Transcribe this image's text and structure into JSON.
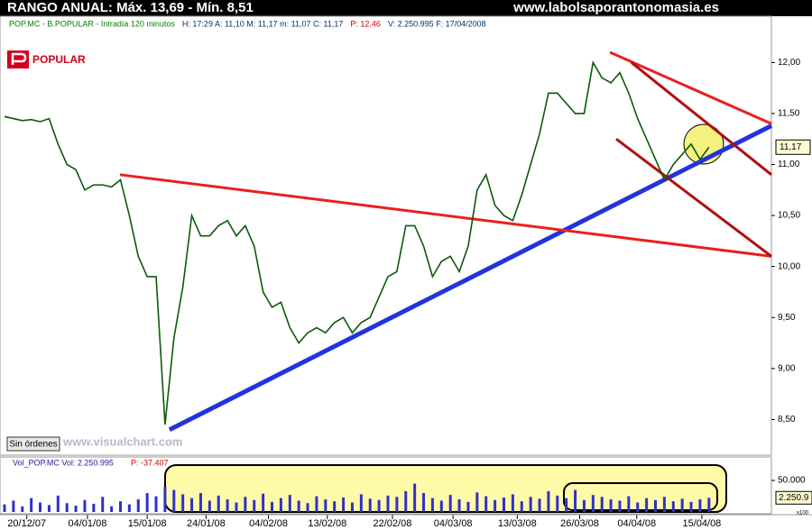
{
  "header": {
    "title": "RANGO ANUAL: Máx. 13,69 - Mín. 8,51",
    "site": "www.labolsaporantonomasia.es"
  },
  "info": [
    {
      "text": "POP.MC - B.POPULAR - Intradía 120 minutos",
      "color": "#008000"
    },
    {
      "text": "H: 17:29  A: 11,10  M: 11,17  m: 11,07  C: 11,17",
      "color": "#003366"
    },
    {
      "text": "P: 12,46",
      "color": "#d00000"
    },
    {
      "text": "V: 2.250.995  F: 17/04/2008",
      "color": "#003366"
    }
  ],
  "logo": "POPULAR",
  "button": "Sin órdenes",
  "watermark": "www.visualchart.com",
  "chart_data": [
    {
      "type": "line",
      "color": "#0b5a0b",
      "xlim": [
        0,
        86
      ],
      "ylim": [
        8.15,
        12.33
      ],
      "values": [
        11.47,
        11.45,
        11.43,
        11.44,
        11.42,
        11.45,
        11.2,
        11.0,
        10.95,
        10.75,
        10.8,
        10.8,
        10.78,
        10.85,
        10.5,
        10.1,
        9.9,
        9.9,
        8.45,
        9.3,
        9.8,
        10.5,
        10.3,
        10.3,
        10.4,
        10.45,
        10.3,
        10.4,
        10.2,
        9.75,
        9.6,
        9.65,
        9.4,
        9.25,
        9.35,
        9.4,
        9.35,
        9.45,
        9.5,
        9.35,
        9.45,
        9.5,
        9.7,
        9.9,
        9.95,
        10.4,
        10.4,
        10.2,
        9.9,
        10.05,
        10.1,
        9.95,
        10.2,
        10.75,
        10.9,
        10.6,
        10.5,
        10.45,
        10.7,
        11.0,
        11.3,
        11.7,
        11.7,
        11.6,
        11.5,
        11.5,
        12.0,
        11.85,
        11.8,
        11.9,
        11.7,
        11.45,
        11.25,
        11.05,
        10.85,
        11.0,
        11.1,
        11.2,
        11.05,
        11.17
      ],
      "yticks": [
        {
          "value": 12,
          "label": "12,00"
        },
        {
          "value": 11.5,
          "label": "11,50"
        },
        {
          "value": 11,
          "label": "11,00"
        },
        {
          "value": 10.5,
          "label": "10,50"
        },
        {
          "value": 10,
          "label": "10,00"
        },
        {
          "value": 9.5,
          "label": "9,50"
        },
        {
          "value": 9,
          "label": "9,00"
        },
        {
          "value": 8.5,
          "label": "8,50"
        }
      ],
      "last": {
        "value": 11.17,
        "label": "11,17"
      },
      "trendlines": [
        {
          "color": "#2233dd",
          "x": [
            18.5,
            86
          ],
          "y": [
            8.4,
            11.38
          ]
        },
        {
          "color": "#e82020",
          "x": [
            12.95,
            86
          ],
          "y": [
            10.9,
            10.1
          ]
        },
        {
          "color": "#e82020",
          "x": [
            67.9,
            86
          ],
          "y": [
            12.1,
            11.4
          ]
        },
        {
          "color": "#b01010",
          "x": [
            70.3,
            86
          ],
          "y": [
            12.0,
            10.9
          ]
        },
        {
          "color": "#b01010",
          "x": [
            68.6,
            86
          ],
          "y": [
            11.25,
            10.1
          ]
        }
      ]
    },
    {
      "type": "bar",
      "color": "#3030c8",
      "title": "Vol_POP.MC  Vol: 2.250.995",
      "subtitle": "P: -37.407",
      "xlim": [
        0,
        86
      ],
      "ylim": [
        0,
        83000
      ],
      "values": [
        12000,
        18000,
        9000,
        22000,
        15000,
        11000,
        26000,
        14000,
        10000,
        19000,
        13000,
        24000,
        9000,
        17000,
        12000,
        20000,
        30000,
        25000,
        40000,
        35000,
        28000,
        22000,
        30000,
        18000,
        26000,
        20000,
        15000,
        24000,
        19000,
        29000,
        16000,
        22000,
        27000,
        18000,
        14000,
        25000,
        20000,
        17000,
        23000,
        15000,
        28000,
        21000,
        19000,
        26000,
        24000,
        33000,
        45000,
        30000,
        22000,
        18000,
        27000,
        20000,
        16000,
        31000,
        25000,
        19000,
        23000,
        28000,
        17000,
        24000,
        21000,
        33000,
        26000,
        22000,
        35000,
        19000,
        27000,
        24000,
        20000,
        18000,
        25000,
        15000,
        22000,
        19000,
        24000,
        17000,
        21000,
        16000,
        20000,
        22510
      ],
      "yticks": [
        {
          "value": 50000,
          "label": "50.000"
        }
      ],
      "last": {
        "value": 22510,
        "label": "2.250.9"
      },
      "unit": "x100",
      "xticks": [
        {
          "value": 2.5,
          "label": "20/12/07"
        },
        {
          "value": 9.3,
          "label": "04/01/08"
        },
        {
          "value": 16,
          "label": "15/01/08"
        },
        {
          "value": 22.6,
          "label": "24/01/08"
        },
        {
          "value": 29.6,
          "label": "04/02/08"
        },
        {
          "value": 36.2,
          "label": "13/02/08"
        },
        {
          "value": 43.5,
          "label": "22/02/08"
        },
        {
          "value": 50.3,
          "label": "04/03/08"
        },
        {
          "value": 57.5,
          "label": "13/03/08"
        },
        {
          "value": 64.5,
          "label": "26/03/08"
        },
        {
          "value": 70.9,
          "label": "04/04/08"
        },
        {
          "value": 78.2,
          "label": "15/04/08"
        }
      ]
    }
  ]
}
